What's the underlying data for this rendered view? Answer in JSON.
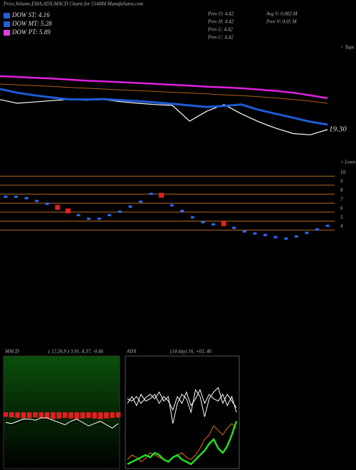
{
  "header": {
    "title": "Price,Volume,EMA,ADX,MACD Charts for 514084 MunafaSutra.com",
    "legend": [
      {
        "label": "DOW ST: 4.16",
        "color": "#2a5bd8"
      },
      {
        "label": "DOW MT: 5.28",
        "color": "#2a5bd8"
      },
      {
        "label": "DOW PT: 5.89",
        "color": "#e040e0"
      }
    ],
    "stats": [
      "Prev  O: 4.42",
      "Avg V: 0.003 M",
      "Prev  H: 4.42",
      "Prev  V: 0.05 M",
      "Prev  L: 4.42",
      "Prev  C: 4.42"
    ],
    "tops": "< Tops",
    "lows": "< Lows"
  },
  "chart_data": [
    {
      "type": "line",
      "categories": [
        null,
        null,
        null,
        null,
        null,
        null,
        null,
        null,
        null,
        null,
        null,
        null,
        null,
        null,
        null,
        null,
        null,
        null,
        null,
        null
      ],
      "ylim": [
        18,
        22.6
      ],
      "yticks": [
        {
          "value": 19.3,
          "label": "19.30"
        }
      ],
      "series": [
        {
          "color": "#b0601a",
          "values": [
            21.03,
            21.0,
            20.97,
            20.94,
            20.9,
            20.87,
            20.84,
            20.81,
            20.78,
            20.75,
            20.72,
            20.69,
            20.66,
            20.62,
            20.59,
            20.55,
            20.5,
            20.44,
            20.38,
            20.3
          ]
        },
        {
          "color": "#ffffff",
          "values": [
            20.44,
            20.3,
            20.35,
            20.4,
            20.45,
            20.42,
            20.44,
            20.36,
            20.3,
            20.25,
            20.22,
            19.62,
            20.0,
            20.25,
            19.9,
            19.6,
            19.35,
            19.15,
            19.1,
            19.3
          ]
        },
        {
          "color": "#1e5bd6",
          "values": [
            20.84,
            20.7,
            20.6,
            20.52,
            20.45,
            20.44,
            20.46,
            20.42,
            20.38,
            20.33,
            20.28,
            20.22,
            20.16,
            20.2,
            20.25,
            20.05,
            19.9,
            19.75,
            19.6,
            19.49
          ]
        },
        {
          "color": "#e020e0",
          "values": [
            21.33,
            21.3,
            21.27,
            21.24,
            21.2,
            21.16,
            21.13,
            21.1,
            21.07,
            21.04,
            21.0,
            20.97,
            20.93,
            20.9,
            20.87,
            20.82,
            20.77,
            20.7,
            20.6,
            20.49
          ]
        }
      ]
    },
    {
      "type": "dots",
      "categories": [
        null,
        null,
        null,
        null,
        null,
        null,
        null,
        null,
        null,
        null,
        null,
        null,
        null,
        null,
        null,
        null,
        null,
        null,
        null,
        null,
        null,
        null,
        null,
        null,
        null,
        null,
        null,
        null,
        null,
        null,
        null,
        null
      ],
      "ylim": [
        2.5,
        10.5
      ],
      "yticks": [
        4,
        5,
        6,
        7,
        8,
        9,
        10
      ],
      "grid": true,
      "values": [
        7.71,
        7.71,
        7.55,
        7.24,
        6.92,
        6.53,
        6.13,
        5.66,
        5.26,
        5.26,
        5.66,
        6.05,
        6.61,
        7.16,
        8.03,
        7.87,
        6.76,
        6.13,
        5.42,
        4.87,
        4.63,
        4.71,
        4.24,
        3.84,
        3.61,
        3.45,
        3.21,
        3.05,
        3.29,
        3.69,
        4.08,
        4.48
      ],
      "point_colors": [
        "#2f6bff",
        "#2f6bff",
        "#2f6bff",
        "#2f6bff",
        "#2f6bff",
        "#e02020",
        "#e02020",
        "#2f6bff",
        "#2f6bff",
        "#2f6bff",
        "#2f6bff",
        "#2f6bff",
        "#2f6bff",
        "#2f6bff",
        "#2f6bff",
        "#e02020",
        "#2f6bff",
        "#2f6bff",
        "#2f6bff",
        "#2f6bff",
        "#2f6bff",
        "#e02020",
        "#2f6bff",
        "#2f6bff",
        "#2f6bff",
        "#2f6bff",
        "#2f6bff",
        "#2f6bff",
        "#2f6bff",
        "#2f6bff",
        "#2f6bff",
        "#2f6bff"
      ]
    },
    {
      "type": "macd",
      "title": "MACD",
      "subtitle": "( 12,26,9 ) 3.91, 4.37, -0.46",
      "categories": [
        null,
        null,
        null,
        null,
        null,
        null,
        null,
        null,
        null,
        null,
        null,
        null,
        null,
        null,
        null,
        null,
        null,
        null,
        null,
        null
      ],
      "ylim": [
        -5,
        5
      ],
      "histogram": {
        "color": "#e02020",
        "values": [
          -0.4,
          -0.45,
          -0.5,
          -0.55,
          -0.5,
          -0.45,
          -0.5,
          -0.55,
          -0.6,
          -0.55,
          -0.5,
          -0.55,
          -0.6,
          -0.55,
          -0.5,
          -0.55,
          -0.6,
          -0.55,
          -0.5,
          -0.46
        ]
      },
      "series": [
        {
          "color": "#000000",
          "values": [
            -1.1,
            -1.1,
            -1.0,
            -0.8,
            -0.7,
            -0.7,
            -0.6,
            -0.6,
            -0.7,
            -0.8,
            -1.0,
            -0.9,
            -0.8,
            -0.9,
            -1.1,
            -1.1,
            -1.0,
            -1.1,
            -1.3,
            -1.2
          ]
        },
        {
          "color": "#ffffff",
          "values": [
            -0.9,
            -1.0,
            -0.8,
            -0.6,
            -0.6,
            -0.7,
            -0.5,
            -0.5,
            -0.7,
            -0.9,
            -1.1,
            -0.8,
            -0.6,
            -0.9,
            -1.2,
            -1.0,
            -0.8,
            -1.1,
            -1.4,
            -1.0
          ]
        }
      ]
    },
    {
      "type": "line",
      "title": "ADX",
      "subtitle": "(14  day) 16, +63, 46",
      "categories": [
        null,
        null,
        null,
        null,
        null,
        null,
        null,
        null,
        null,
        null,
        null,
        null,
        null,
        null,
        null,
        null,
        null,
        null,
        null,
        null,
        null,
        null,
        null,
        null,
        null
      ],
      "ylim": [
        0,
        100
      ],
      "series": [
        {
          "color": "#ffffff",
          "values": [
            62,
            60,
            64,
            58,
            63,
            66,
            62,
            68,
            60,
            64,
            40,
            58,
            66,
            62,
            50,
            70,
            64,
            46,
            62,
            68,
            72,
            58,
            66,
            60,
            54
          ]
        },
        {
          "color": "#ffffff",
          "values": [
            58,
            64,
            56,
            66,
            60,
            62,
            66,
            58,
            64,
            60,
            52,
            64,
            58,
            68,
            56,
            62,
            70,
            58,
            66,
            62,
            60,
            66,
            56,
            64,
            50
          ]
        },
        {
          "color": "#e07010",
          "values": [
            8,
            12,
            10,
            6,
            9,
            14,
            12,
            10,
            8,
            6,
            10,
            12,
            14,
            10,
            8,
            12,
            18,
            26,
            30,
            38,
            34,
            30,
            36,
            40,
            36
          ]
        },
        {
          "color": "#22dd22",
          "values": [
            4,
            6,
            8,
            10,
            12,
            10,
            14,
            12,
            8,
            6,
            10,
            12,
            8,
            6,
            4,
            8,
            12,
            16,
            22,
            26,
            18,
            14,
            20,
            30,
            42
          ]
        }
      ]
    }
  ]
}
